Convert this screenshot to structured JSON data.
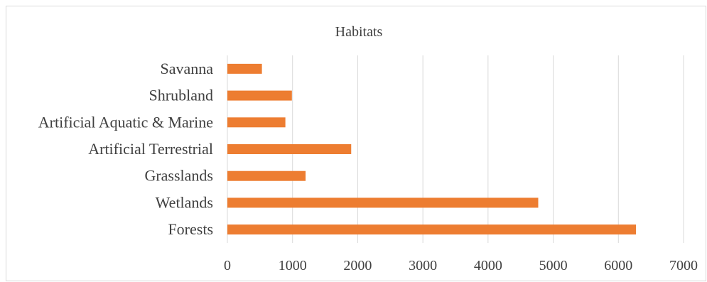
{
  "chart_data": {
    "type": "bar",
    "orientation": "horizontal",
    "title": "Habitats",
    "categories": [
      "Forests",
      "Wetlands",
      "Grasslands",
      "Artificial Terrestrial",
      "Artificial Aquatic & Marine",
      "Shrubland",
      "Savanna"
    ],
    "values": [
      6270,
      4770,
      1200,
      1900,
      890,
      990,
      530
    ],
    "xlim": [
      0,
      7000
    ],
    "xticks": [
      0,
      1000,
      2000,
      3000,
      4000,
      5000,
      6000,
      7000
    ],
    "xtick_labels": [
      "0",
      "1000",
      "2000",
      "3000",
      "4000",
      "5000",
      "6000",
      "7000"
    ],
    "grid": "vertical",
    "legend": "none",
    "bar_color": "#ed7d31"
  }
}
